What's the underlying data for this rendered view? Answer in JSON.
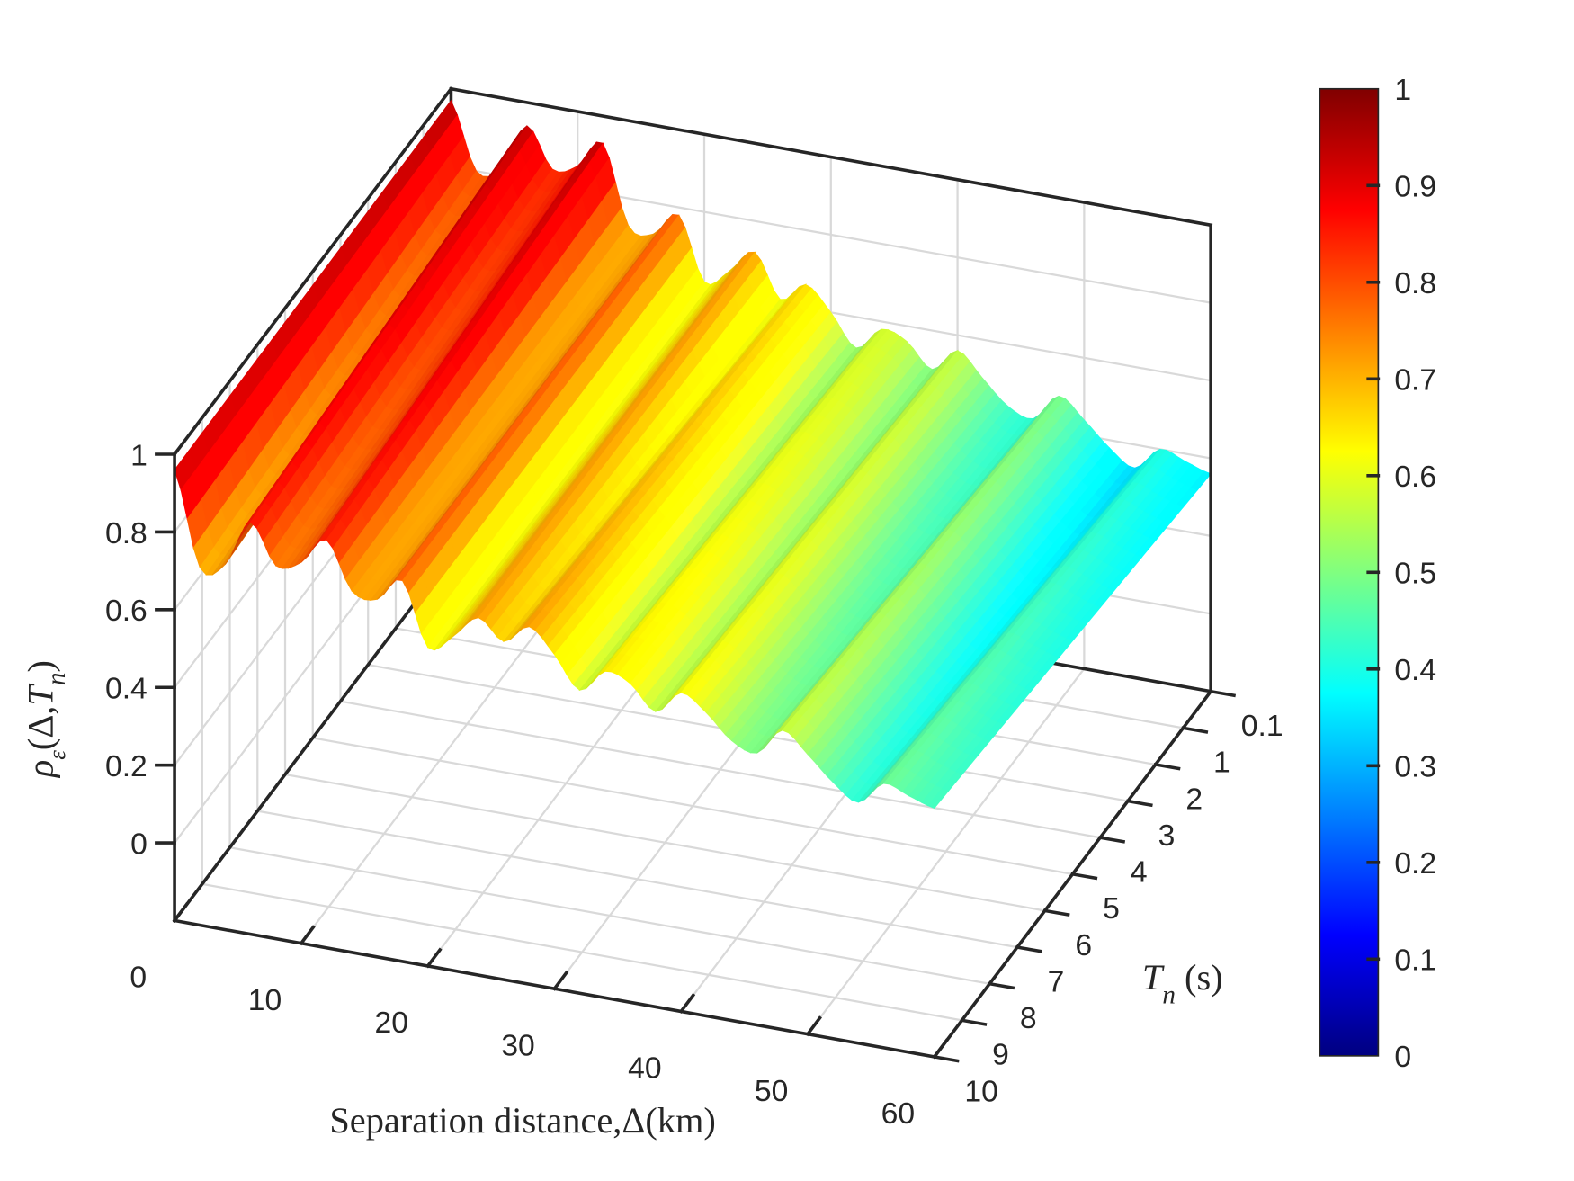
{
  "chart_data": {
    "type": "surface",
    "colormap": "jet",
    "clim": [
      0,
      1
    ],
    "xlabel": "Separation distance,Δ(km)",
    "ylabel_parts": {
      "main": "T",
      "sub": "n",
      "unit": " (s)"
    },
    "zlabel_parts": {
      "rho": "ρ",
      "sub": "ε",
      "open": "(Δ,",
      "T": "T",
      "sub2": "n",
      "close": ")"
    },
    "xlim": [
      0,
      60
    ],
    "xticks": [
      0,
      10,
      20,
      30,
      40,
      50,
      60
    ],
    "yticklabels": [
      "0.1",
      "1",
      "2",
      "3",
      "4",
      "5",
      "6",
      "7",
      "8",
      "9",
      "10"
    ],
    "zlim": [
      -0.2,
      1
    ],
    "zticks": [
      0,
      0.2,
      0.4,
      0.6,
      0.8,
      1
    ],
    "colorbar_ticks": [
      0,
      0.1,
      0.2,
      0.3,
      0.4,
      0.5,
      0.6,
      0.7,
      0.8,
      0.9,
      1
    ],
    "grid": true,
    "surface": {
      "x": [
        0,
        2,
        4,
        6,
        8,
        10,
        12,
        14,
        16,
        18,
        20,
        22,
        24,
        26,
        28,
        30,
        32,
        34,
        36,
        38,
        40,
        42,
        44,
        46,
        48,
        50,
        52,
        54,
        56,
        58,
        60
      ],
      "rows": [
        {
          "T": "0.1",
          "z": [
            0.97,
            0.8,
            0.82,
            0.94,
            0.84,
            0.86,
            0.93,
            0.73,
            0.72,
            0.78,
            0.62,
            0.66,
            0.72,
            0.61,
            0.66,
            0.6,
            0.52,
            0.58,
            0.56,
            0.5,
            0.56,
            0.5,
            0.44,
            0.42,
            0.49,
            0.44,
            0.38,
            0.34,
            0.4,
            0.38,
            0.36
          ]
        },
        {
          "T": "10",
          "z": [
            0.96,
            0.72,
            0.74,
            0.86,
            0.76,
            0.78,
            0.85,
            0.73,
            0.72,
            0.78,
            0.62,
            0.66,
            0.72,
            0.67,
            0.72,
            0.66,
            0.58,
            0.64,
            0.62,
            0.56,
            0.62,
            0.58,
            0.52,
            0.5,
            0.57,
            0.52,
            0.46,
            0.42,
            0.48,
            0.46,
            0.44
          ]
        }
      ]
    }
  }
}
